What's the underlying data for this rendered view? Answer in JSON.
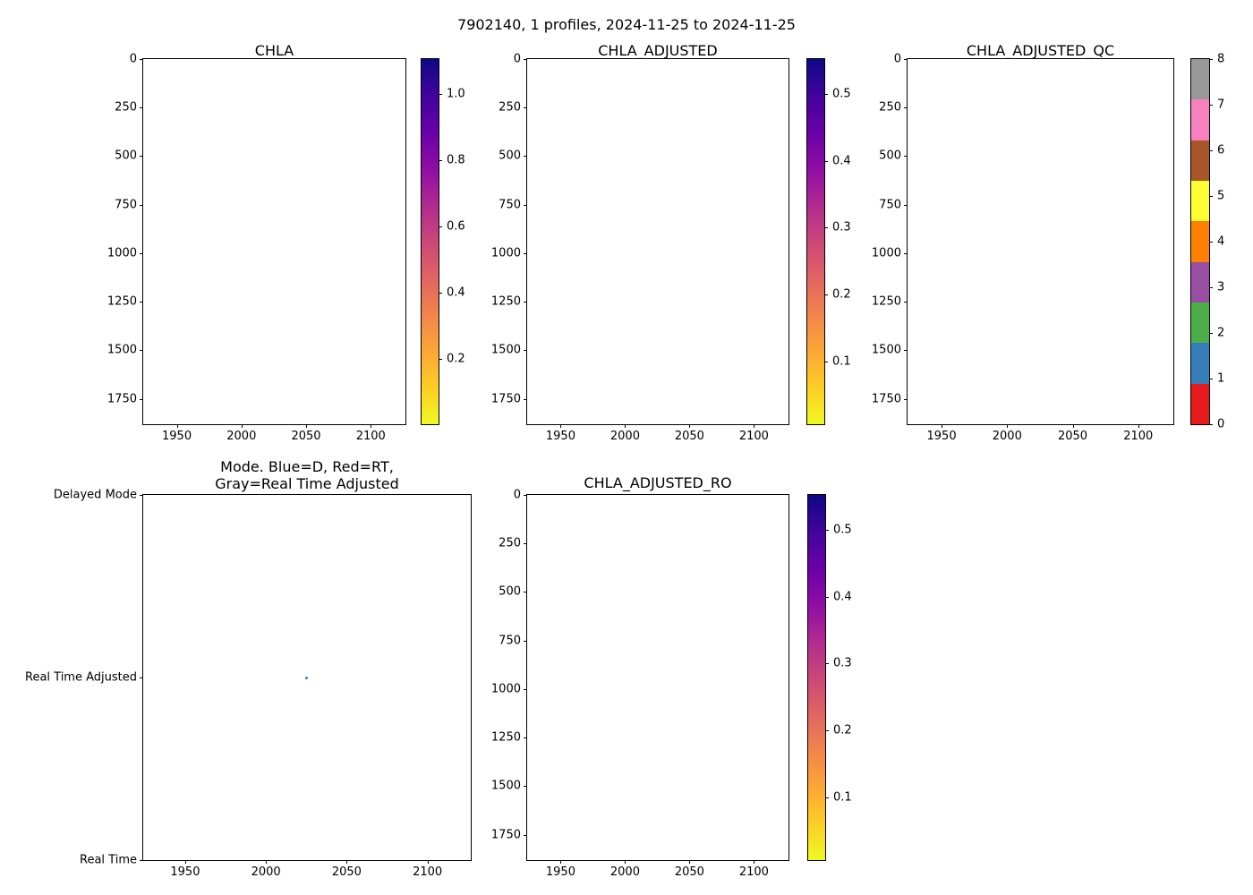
{
  "figure": {
    "suptitle": "7902140, 1 profiles, 2024-11-25 to 2024-11-25",
    "background": "#ffffff"
  },
  "colors": {
    "axis": "#000000",
    "plasma_r_top_to_bottom": [
      "#0d0887",
      "#41049d",
      "#6a00a8",
      "#8f0da4",
      "#b12a90",
      "#cc4778",
      "#e16462",
      "#f2844b",
      "#fca636",
      "#fcce25",
      "#f0f921"
    ],
    "qc_palette": {
      "0": "#e41a1c",
      "1": "#377eb8",
      "2": "#4daf4a",
      "3": "#984ea3",
      "4": "#ff7f00",
      "5": "#ffff33",
      "6": "#a65628",
      "7": "#f781bf",
      "8": "#999999"
    },
    "mode_marker_blue": "#377eb8"
  },
  "chart_data": [
    {
      "title": "CHLA",
      "type": "scatter",
      "xlabel": "",
      "ylabel": "",
      "xlim": [
        1924,
        2126.8
      ],
      "ylim": [
        0,
        1881
      ],
      "y_inverted": true,
      "x_ticks": [
        {
          "label": "1950",
          "value": 1950
        },
        {
          "label": "2000",
          "value": 2000
        },
        {
          "label": "2050",
          "value": 2050
        },
        {
          "label": "2100",
          "value": 2100
        }
      ],
      "y_ticks": [
        {
          "label": "0",
          "value": 0
        },
        {
          "label": "250",
          "value": 250
        },
        {
          "label": "500",
          "value": 500
        },
        {
          "label": "750",
          "value": 750
        },
        {
          "label": "1000",
          "value": 1000
        },
        {
          "label": "1250",
          "value": 1250
        },
        {
          "label": "1500",
          "value": 1500
        },
        {
          "label": "1750",
          "value": 1750
        }
      ],
      "points": [],
      "colorbar": {
        "type": "continuous",
        "colormap": "plasma_r",
        "vmin": 0.003,
        "vmax": 1.106,
        "ticks": [
          {
            "label": "1.0",
            "value": 1.0
          },
          {
            "label": "0.8",
            "value": 0.8
          },
          {
            "label": "0.6",
            "value": 0.6
          },
          {
            "label": "0.4",
            "value": 0.4
          },
          {
            "label": "0.2",
            "value": 0.2
          }
        ]
      }
    },
    {
      "title": "CHLA_ADJUSTED",
      "type": "scatter",
      "xlabel": "",
      "ylabel": "",
      "xlim": [
        1924,
        2126.8
      ],
      "ylim": [
        0,
        1881
      ],
      "y_inverted": true,
      "x_ticks": [
        {
          "label": "1950",
          "value": 1950
        },
        {
          "label": "2000",
          "value": 2000
        },
        {
          "label": "2050",
          "value": 2050
        },
        {
          "label": "2100",
          "value": 2100
        }
      ],
      "y_ticks": [
        {
          "label": "0",
          "value": 0
        },
        {
          "label": "250",
          "value": 250
        },
        {
          "label": "500",
          "value": 500
        },
        {
          "label": "750",
          "value": 750
        },
        {
          "label": "1000",
          "value": 1000
        },
        {
          "label": "1250",
          "value": 1250
        },
        {
          "label": "1500",
          "value": 1500
        },
        {
          "label": "1750",
          "value": 1750
        }
      ],
      "points": [],
      "colorbar": {
        "type": "continuous",
        "colormap": "plasma_r",
        "vmin": 0.006,
        "vmax": 0.552,
        "ticks": [
          {
            "label": "0.5",
            "value": 0.5
          },
          {
            "label": "0.4",
            "value": 0.4
          },
          {
            "label": "0.3",
            "value": 0.3
          },
          {
            "label": "0.2",
            "value": 0.2
          },
          {
            "label": "0.1",
            "value": 0.1
          }
        ]
      }
    },
    {
      "title": "CHLA_ADJUSTED_QC",
      "type": "scatter",
      "xlabel": "",
      "ylabel": "",
      "xlim": [
        1924,
        2126.8
      ],
      "ylim": [
        0,
        1881
      ],
      "y_inverted": true,
      "x_ticks": [
        {
          "label": "1950",
          "value": 1950
        },
        {
          "label": "2000",
          "value": 2000
        },
        {
          "label": "2050",
          "value": 2050
        },
        {
          "label": "2100",
          "value": 2100
        }
      ],
      "y_ticks": [
        {
          "label": "0",
          "value": 0
        },
        {
          "label": "250",
          "value": 250
        },
        {
          "label": "500",
          "value": 500
        },
        {
          "label": "750",
          "value": 750
        },
        {
          "label": "1000",
          "value": 1000
        },
        {
          "label": "1250",
          "value": 1250
        },
        {
          "label": "1500",
          "value": 1500
        },
        {
          "label": "1750",
          "value": 1750
        }
      ],
      "points": [],
      "colorbar": {
        "type": "discrete",
        "vmin": 0,
        "vmax": 8,
        "segment_colors_top_to_bottom": [
          "#999999",
          "#f781bf",
          "#a65628",
          "#ffff33",
          "#ff7f00",
          "#984ea3",
          "#4daf4a",
          "#377eb8",
          "#e41a1c"
        ],
        "ticks": [
          {
            "label": "8",
            "value": 8
          },
          {
            "label": "7",
            "value": 7
          },
          {
            "label": "6",
            "value": 6
          },
          {
            "label": "5",
            "value": 5
          },
          {
            "label": "4",
            "value": 4
          },
          {
            "label": "3",
            "value": 3
          },
          {
            "label": "2",
            "value": 2
          },
          {
            "label": "1",
            "value": 1
          },
          {
            "label": "0",
            "value": 0
          }
        ]
      }
    },
    {
      "title": "Mode. Blue=D, Red=RT,\nGray=Real Time Adjusted",
      "type": "scatter",
      "xlabel": "",
      "ylabel": "",
      "xlim": [
        1924,
        2126.8
      ],
      "x_ticks": [
        {
          "label": "1950",
          "value": 1950
        },
        {
          "label": "2000",
          "value": 2000
        },
        {
          "label": "2050",
          "value": 2050
        },
        {
          "label": "2100",
          "value": 2100
        }
      ],
      "y_ticks": [
        {
          "label": "Delayed Mode",
          "frac": 0
        },
        {
          "label": "Real Time Adjusted",
          "frac": 0.5
        },
        {
          "label": "Real Time",
          "frac": 1
        }
      ],
      "points": [
        {
          "x": 2025,
          "y_frac": 0.5,
          "y_category": "Real Time Adjusted",
          "color": "#377eb8"
        }
      ]
    },
    {
      "title": "CHLA_ADJUSTED_RO",
      "type": "scatter",
      "xlabel": "",
      "ylabel": "",
      "xlim": [
        1924,
        2126.8
      ],
      "ylim": [
        0,
        1881
      ],
      "y_inverted": true,
      "x_ticks": [
        {
          "label": "1950",
          "value": 1950
        },
        {
          "label": "2000",
          "value": 2000
        },
        {
          "label": "2050",
          "value": 2050
        },
        {
          "label": "2100",
          "value": 2100
        }
      ],
      "y_ticks": [
        {
          "label": "0",
          "value": 0
        },
        {
          "label": "250",
          "value": 250
        },
        {
          "label": "500",
          "value": 500
        },
        {
          "label": "750",
          "value": 750
        },
        {
          "label": "1000",
          "value": 1000
        },
        {
          "label": "1250",
          "value": 1250
        },
        {
          "label": "1500",
          "value": 1500
        },
        {
          "label": "1750",
          "value": 1750
        }
      ],
      "points": [],
      "colorbar": {
        "type": "continuous",
        "colormap": "plasma_r",
        "vmin": 0.006,
        "vmax": 0.552,
        "ticks": [
          {
            "label": "0.5",
            "value": 0.5
          },
          {
            "label": "0.4",
            "value": 0.4
          },
          {
            "label": "0.3",
            "value": 0.3
          },
          {
            "label": "0.2",
            "value": 0.2
          },
          {
            "label": "0.1",
            "value": 0.1
          }
        ]
      }
    }
  ]
}
